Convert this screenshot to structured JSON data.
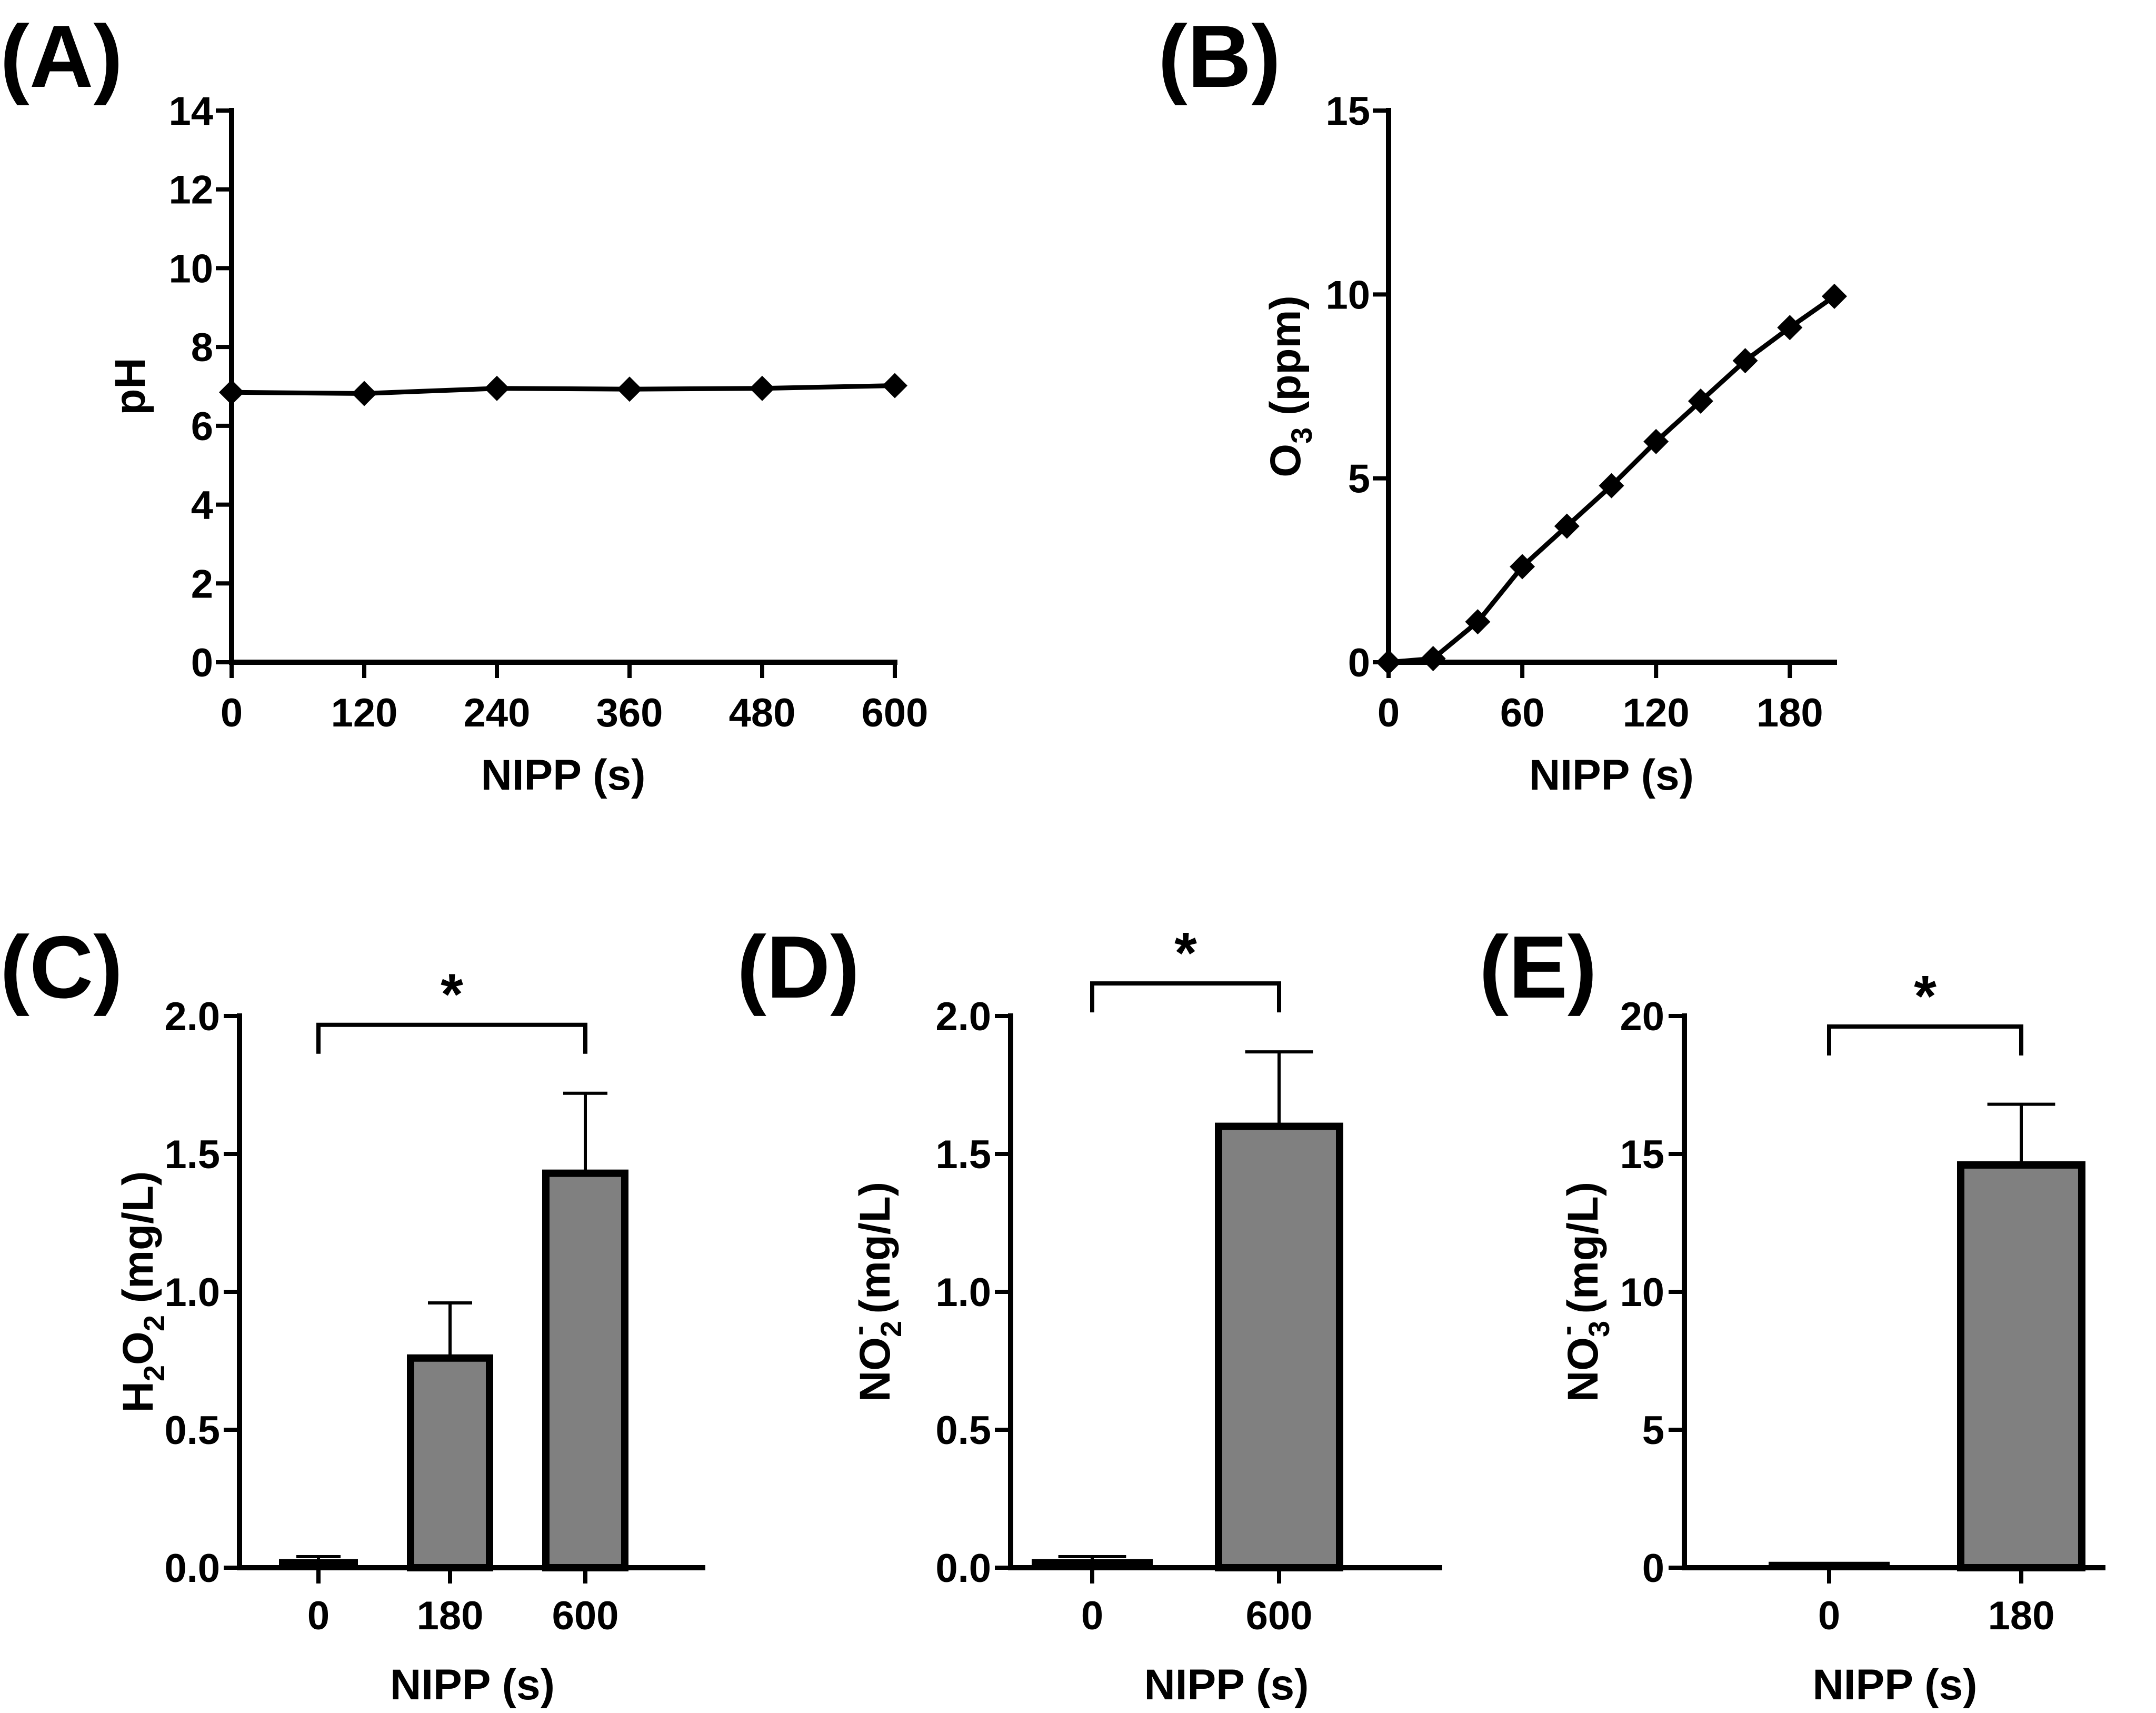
{
  "chart_data": [
    {
      "panel": "(A)",
      "type": "line",
      "xlabel": "NIPP (s)",
      "ylabel": "pH",
      "xlim": [
        0,
        600
      ],
      "ylim": [
        0,
        14
      ],
      "xticks": [
        "0",
        "120",
        "240",
        "360",
        "480",
        "600"
      ],
      "yticks": [
        "0",
        "2",
        "4",
        "6",
        "8",
        "10",
        "12",
        "14"
      ],
      "series": [
        {
          "name": "pH",
          "x": [
            0,
            120,
            240,
            360,
            480,
            600
          ],
          "y": [
            6.85,
            6.82,
            6.95,
            6.93,
            6.95,
            7.02
          ]
        }
      ]
    },
    {
      "panel": "(B)",
      "type": "line",
      "xlabel": "NIPP (s)",
      "ylabel_main": "O",
      "ylabel_sub": "3",
      "ylabel_unit": " (ppm)",
      "xlim": [
        0,
        200
      ],
      "ylim": [
        0,
        15
      ],
      "xticks": [
        "0",
        "60",
        "120",
        "180"
      ],
      "yticks": [
        "0",
        "5",
        "10",
        "15"
      ],
      "series": [
        {
          "name": "O3",
          "x": [
            0,
            20,
            40,
            60,
            80,
            100,
            120,
            140,
            160,
            180,
            200
          ],
          "y": [
            0.0,
            0.1,
            1.1,
            2.6,
            3.7,
            4.8,
            6.0,
            7.1,
            8.2,
            9.1,
            9.95
          ]
        }
      ]
    },
    {
      "panel": "(C)",
      "type": "bar",
      "xlabel": "NIPP (s)",
      "ylabel_parts": [
        "H",
        "2",
        "O",
        "2",
        " (mg/L)"
      ],
      "ylim": [
        0,
        2.0
      ],
      "yticks": [
        "0.0",
        "0.5",
        "1.0",
        "1.5",
        "2.0"
      ],
      "categories": [
        "0",
        "180",
        "600"
      ],
      "values": [
        0.02,
        0.76,
        1.43
      ],
      "errors": [
        0.02,
        0.2,
        0.29
      ],
      "significance": {
        "from": 0,
        "to": 2,
        "label": "*"
      }
    },
    {
      "panel": "(D)",
      "type": "bar",
      "xlabel": "NIPP (s)",
      "ylabel_parts": [
        "NO",
        "2",
        "-",
        " (mg/L)"
      ],
      "ylim": [
        0,
        2.0
      ],
      "yticks": [
        "0.0",
        "0.5",
        "1.0",
        "1.5",
        "2.0"
      ],
      "categories": [
        "0",
        "600"
      ],
      "values": [
        0.02,
        1.6
      ],
      "errors": [
        0.02,
        0.27
      ],
      "significance": {
        "from": 0,
        "to": 1,
        "label": "*"
      }
    },
    {
      "panel": "(E)",
      "type": "bar",
      "xlabel": "NIPP (s)",
      "ylabel_parts": [
        "NO",
        "3",
        "-",
        " (mg/L)"
      ],
      "ylim": [
        0,
        20
      ],
      "yticks": [
        "0",
        "5",
        "10",
        "15",
        "20"
      ],
      "categories": [
        "0",
        "180"
      ],
      "values": [
        0.1,
        14.6
      ],
      "errors": [
        0.0,
        2.2
      ],
      "significance": {
        "from": 0,
        "to": 1,
        "label": "*"
      }
    }
  ],
  "colors": {
    "bar_fill": "#808080",
    "ink": "#000000",
    "background": "#ffffff"
  }
}
